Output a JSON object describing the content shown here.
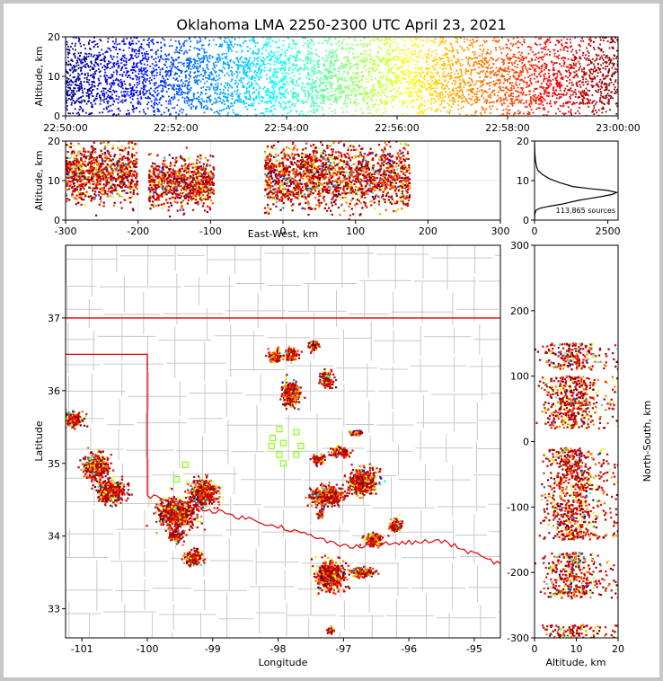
{
  "figure": {
    "title": "Oklahoma LMA 2250-2300 UTC April 23, 2021"
  },
  "colors": {
    "colormap": [
      "#00007f",
      "#0000ff",
      "#007fff",
      "#00ffff",
      "#7fff7f",
      "#ffff00",
      "#ff7f00",
      "#ff0000",
      "#7f0000"
    ],
    "state_border": "#e00000",
    "county_lines": "#c8c8c8",
    "station_marker": "#7fff00",
    "histogram_line": "#000000"
  },
  "chart_data": [
    {
      "type": "scatter",
      "name": "time-height",
      "xlabel": "",
      "ylabel": "Altitude, km",
      "xlim": [
        "22:50:00",
        "23:00:00"
      ],
      "ylim": [
        0,
        20
      ],
      "xtick_labels": [
        "22:50:00",
        "22:52:00",
        "22:54:00",
        "22:56:00",
        "22:58:00",
        "23:00:00"
      ],
      "yticks": [
        0,
        10,
        20
      ],
      "color_by": "time",
      "altitude_core_km": [
        3,
        15
      ]
    },
    {
      "type": "scatter",
      "name": "east-west-vs-altitude",
      "xlabel": "East-West, km",
      "ylabel": "Altitude, km",
      "xlim": [
        -300,
        300
      ],
      "ylim": [
        0,
        20
      ],
      "xticks": [
        -300,
        -200,
        -100,
        0,
        100,
        200,
        300
      ],
      "yticks": [
        0,
        10,
        20
      ],
      "grid": true,
      "clusters": [
        {
          "x": [
            -300,
            -200
          ],
          "y": [
            4,
            20
          ]
        },
        {
          "x": [
            -185,
            -95
          ],
          "y": [
            3,
            16
          ]
        },
        {
          "x": [
            -25,
            175
          ],
          "y": [
            2,
            20
          ]
        }
      ]
    },
    {
      "type": "line",
      "name": "altitude-histogram",
      "xlabel": "",
      "ylabel": "",
      "xlim": [
        0,
        2850
      ],
      "ylim": [
        0,
        20
      ],
      "xticks": [
        0,
        2500
      ],
      "yticks": [
        0,
        10,
        20
      ],
      "annotation": "113,865 sources",
      "curve": [
        {
          "alt": 0.1,
          "count": 0
        },
        {
          "alt": 1.5,
          "count": 10
        },
        {
          "alt": 2.5,
          "count": 50
        },
        {
          "alt": 3.0,
          "count": 180
        },
        {
          "alt": 3.5,
          "count": 500
        },
        {
          "alt": 4.0,
          "count": 900
        },
        {
          "alt": 4.5,
          "count": 1200
        },
        {
          "alt": 5.0,
          "count": 1500
        },
        {
          "alt": 5.5,
          "count": 1900
        },
        {
          "alt": 6.0,
          "count": 2300
        },
        {
          "alt": 6.5,
          "count": 2650
        },
        {
          "alt": 7.0,
          "count": 2800
        },
        {
          "alt": 7.5,
          "count": 2500
        },
        {
          "alt": 8.0,
          "count": 1850
        },
        {
          "alt": 8.5,
          "count": 1300
        },
        {
          "alt": 9.5,
          "count": 850
        },
        {
          "alt": 10.5,
          "count": 500
        },
        {
          "alt": 11.5,
          "count": 280
        },
        {
          "alt": 12.5,
          "count": 120
        },
        {
          "alt": 13.5,
          "count": 70
        },
        {
          "alt": 15.0,
          "count": 35
        },
        {
          "alt": 16.5,
          "count": 15
        },
        {
          "alt": 18.0,
          "count": 5
        },
        {
          "alt": 20.0,
          "count": 0
        }
      ]
    },
    {
      "type": "scatter",
      "name": "plan-view-map",
      "xlabel": "Longitude",
      "ylabel": "Latitude",
      "xlim": [
        -101.25,
        -94.6
      ],
      "ylim": [
        32.6,
        38.0
      ],
      "xticks": [
        -101,
        -100,
        -99,
        -98,
        -97,
        -96,
        -95
      ],
      "yticks": [
        33,
        34,
        35,
        36,
        37
      ],
      "clusters": [
        {
          "lon": -101.15,
          "lat": 35.6,
          "rx": 0.2,
          "ry": 0.12
        },
        {
          "lon": -100.78,
          "lat": 34.95,
          "rx": 0.22,
          "ry": 0.2
        },
        {
          "lon": -100.55,
          "lat": 34.62,
          "rx": 0.25,
          "ry": 0.18
        },
        {
          "lon": -99.55,
          "lat": 34.3,
          "rx": 0.32,
          "ry": 0.22
        },
        {
          "lon": -99.15,
          "lat": 34.6,
          "rx": 0.25,
          "ry": 0.2
        },
        {
          "lon": -99.55,
          "lat": 34.0,
          "rx": 0.12,
          "ry": 0.1
        },
        {
          "lon": -99.3,
          "lat": 33.7,
          "rx": 0.15,
          "ry": 0.12
        },
        {
          "lon": -98.05,
          "lat": 36.47,
          "rx": 0.12,
          "ry": 0.1
        },
        {
          "lon": -97.8,
          "lat": 36.5,
          "rx": 0.1,
          "ry": 0.1
        },
        {
          "lon": -97.45,
          "lat": 36.62,
          "rx": 0.1,
          "ry": 0.07
        },
        {
          "lon": -97.8,
          "lat": 35.95,
          "rx": 0.15,
          "ry": 0.2
        },
        {
          "lon": -97.25,
          "lat": 36.15,
          "rx": 0.12,
          "ry": 0.12
        },
        {
          "lon": -97.05,
          "lat": 35.15,
          "rx": 0.15,
          "ry": 0.08
        },
        {
          "lon": -97.4,
          "lat": 35.05,
          "rx": 0.1,
          "ry": 0.07
        },
        {
          "lon": -97.25,
          "lat": 34.55,
          "rx": 0.3,
          "ry": 0.15
        },
        {
          "lon": -96.7,
          "lat": 34.75,
          "rx": 0.25,
          "ry": 0.2
        },
        {
          "lon": -97.35,
          "lat": 34.3,
          "rx": 0.05,
          "ry": 0.05
        },
        {
          "lon": -96.8,
          "lat": 35.42,
          "rx": 0.1,
          "ry": 0.04
        },
        {
          "lon": -96.2,
          "lat": 34.15,
          "rx": 0.1,
          "ry": 0.1
        },
        {
          "lon": -96.55,
          "lat": 33.95,
          "rx": 0.15,
          "ry": 0.1
        },
        {
          "lon": -97.2,
          "lat": 33.45,
          "rx": 0.25,
          "ry": 0.22
        },
        {
          "lon": -96.7,
          "lat": 33.5,
          "rx": 0.2,
          "ry": 0.08
        },
        {
          "lon": -97.2,
          "lat": 32.7,
          "rx": 0.06,
          "ry": 0.05
        }
      ],
      "stations": [
        {
          "lon": -97.98,
          "lat": 35.47
        },
        {
          "lon": -97.72,
          "lat": 35.43
        },
        {
          "lon": -98.08,
          "lat": 35.35
        },
        {
          "lon": -97.92,
          "lat": 35.28
        },
        {
          "lon": -98.1,
          "lat": 35.24
        },
        {
          "lon": -97.65,
          "lat": 35.24
        },
        {
          "lon": -97.98,
          "lat": 35.12
        },
        {
          "lon": -97.72,
          "lat": 35.12
        },
        {
          "lon": -97.92,
          "lat": 35.0
        },
        {
          "lon": -99.42,
          "lat": 34.98
        },
        {
          "lon": -99.55,
          "lat": 34.78
        }
      ]
    },
    {
      "type": "scatter",
      "name": "altitude-vs-north-south",
      "xlabel": "Altitude, km",
      "ylabel": "North-South, km",
      "xlim": [
        0,
        20
      ],
      "ylim": [
        -300,
        300
      ],
      "xticks": [
        0,
        10,
        20
      ],
      "yticks": [
        -300,
        -200,
        -100,
        0,
        100,
        200,
        300
      ],
      "clusters": [
        {
          "y": [
            110,
            150
          ],
          "x": [
            2,
            20
          ]
        },
        {
          "y": [
            55,
            100
          ],
          "x": [
            2,
            20
          ]
        },
        {
          "y": [
            20,
            60
          ],
          "x": [
            2,
            20
          ]
        },
        {
          "y": [
            -150,
            -10
          ],
          "x": [
            2,
            20
          ]
        },
        {
          "y": [
            -240,
            -170
          ],
          "x": [
            2,
            20
          ]
        },
        {
          "y": [
            -300,
            -280
          ],
          "x": [
            3,
            18
          ]
        }
      ]
    }
  ]
}
